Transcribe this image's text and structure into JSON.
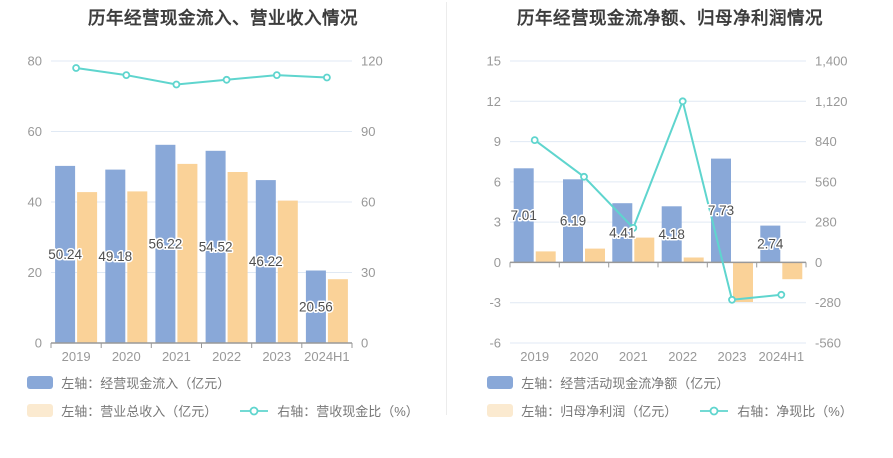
{
  "colors": {
    "background": "#ffffff",
    "bar_blue": "#89a8d8",
    "bar_orange": "#fad298",
    "legend_orange_swatch": "#fbead0",
    "line_teal": "#5fd5ce",
    "grid_line": "#e0e9f4",
    "axis_line": "#999999",
    "title_text": "#3d3d3d",
    "tick_text": "#999999",
    "data_label_text": "#4f4f4f",
    "legend_text": "#777777",
    "panel_divider": "#ececec"
  },
  "chart_data": [
    {
      "type": "bar",
      "title": "历年经营现金流入、营业收入情况",
      "categories": [
        "2019",
        "2020",
        "2021",
        "2022",
        "2023",
        "2024H1"
      ],
      "left_axis": {
        "min": 0,
        "max": 80,
        "ticks": [
          80,
          60,
          40,
          20,
          0
        ]
      },
      "right_axis": {
        "min": 0,
        "max": 120,
        "ticks": [
          120,
          90,
          60,
          30,
          0
        ]
      },
      "grid": true,
      "legend_position": "bottom",
      "series": [
        {
          "name": "左轴：经营现金流入（亿元）",
          "type": "bar",
          "axis": "left",
          "color_key": "bar_blue",
          "values": [
            50.24,
            49.18,
            56.22,
            54.52,
            46.22,
            20.56
          ],
          "value_labels": true
        },
        {
          "name": "左轴：营业总收入（亿元）",
          "type": "bar",
          "axis": "left",
          "color_key": "bar_orange",
          "values": [
            42.8,
            43.0,
            50.8,
            48.5,
            40.4,
            18.1
          ],
          "value_labels": false
        },
        {
          "name": "右轴：营收现金比（%）",
          "type": "line",
          "axis": "right",
          "color_key": "line_teal",
          "values": [
            117,
            114,
            110,
            112,
            114,
            113
          ],
          "value_labels": false
        }
      ]
    },
    {
      "type": "bar",
      "title": "历年经营现金流净额、归母净利润情况",
      "categories": [
        "2019",
        "2020",
        "2021",
        "2022",
        "2023",
        "2024H1"
      ],
      "left_axis": {
        "min": -6,
        "max": 15,
        "ticks": [
          15,
          12,
          9,
          6,
          3,
          0,
          -3,
          -6
        ]
      },
      "right_axis": {
        "min": -560,
        "max": 1400,
        "ticks": [
          1400,
          1120,
          840,
          560,
          280,
          0,
          -280,
          -560
        ]
      },
      "grid": true,
      "legend_position": "bottom",
      "series": [
        {
          "name": "左轴：经营活动现金流净额（亿元）",
          "type": "bar",
          "axis": "left",
          "color_key": "bar_blue",
          "values": [
            7.01,
            6.19,
            4.41,
            4.18,
            7.73,
            2.74
          ],
          "value_labels": true
        },
        {
          "name": "左轴：归母净利润（亿元）",
          "type": "bar",
          "axis": "left",
          "color_key": "bar_orange",
          "values": [
            0.82,
            1.03,
            1.85,
            0.37,
            -2.95,
            -1.25
          ],
          "value_labels": false
        },
        {
          "name": "右轴：净现比（%）",
          "type": "line",
          "axis": "right",
          "color_key": "line_teal",
          "values": [
            850,
            595,
            240,
            1120,
            -260,
            -225
          ],
          "value_labels": false
        }
      ]
    }
  ]
}
